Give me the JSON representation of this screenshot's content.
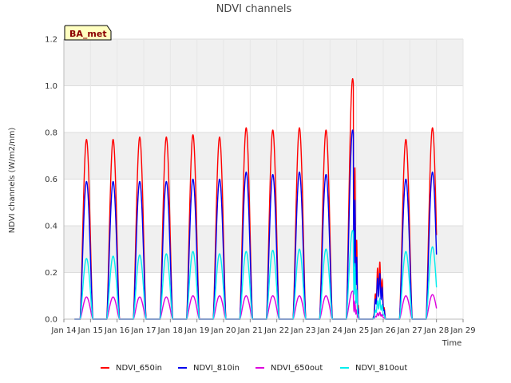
{
  "chart_data": {
    "type": "line",
    "title": "NDVI channels",
    "xlabel": "Time",
    "ylabel": "NDVI channels (W/m2/nm)",
    "badge": "BA_met",
    "ylim": [
      0.0,
      1.2
    ],
    "yticks": [
      0.0,
      0.2,
      0.4,
      0.6,
      0.8,
      1.0,
      1.2
    ],
    "ytick_labels": [
      "0.0",
      "0.2",
      "0.4",
      "0.6",
      "0.8",
      "1.0",
      "1.2"
    ],
    "xlim": [
      14,
      29
    ],
    "xticks": [
      14,
      15,
      16,
      17,
      18,
      19,
      20,
      21,
      22,
      23,
      24,
      25,
      26,
      27,
      28,
      29
    ],
    "xtick_labels": [
      "Jan 14",
      "Jan 15",
      "Jan 16",
      "Jan 17",
      "Jan 18",
      "Jan 19",
      "Jan 20",
      "Jan 21",
      "Jan 22",
      "Jan 23",
      "Jan 24",
      "Jan 25",
      "Jan 26",
      "Jan 27",
      "Jan 28",
      "Jan 29"
    ],
    "series_span": [
      14.4,
      28.0
    ],
    "day_peak_times": [
      14.85,
      15.85,
      16.85,
      17.85,
      18.85,
      19.85,
      20.85,
      21.85,
      22.85,
      23.85,
      24.85,
      25.85,
      26.85,
      27.85
    ],
    "series": [
      {
        "name": "NDVI_650in",
        "color": "#ff0000",
        "peaks": [
          0.77,
          0.77,
          0.78,
          0.78,
          0.79,
          0.78,
          0.82,
          0.81,
          0.82,
          0.81,
          1.03,
          0.25,
          0.77,
          0.82
        ]
      },
      {
        "name": "NDVI_810in",
        "color": "#0000ee",
        "peaks": [
          0.59,
          0.59,
          0.59,
          0.59,
          0.6,
          0.6,
          0.63,
          0.62,
          0.63,
          0.62,
          0.81,
          0.2,
          0.6,
          0.63
        ]
      },
      {
        "name": "NDVI_650out",
        "color": "#dd00dd",
        "peaks": [
          0.095,
          0.095,
          0.095,
          0.095,
          0.1,
          0.1,
          0.1,
          0.1,
          0.1,
          0.1,
          0.12,
          0.03,
          0.1,
          0.105
        ]
      },
      {
        "name": "NDVI_810out",
        "color": "#00eeee",
        "peaks": [
          0.26,
          0.27,
          0.275,
          0.28,
          0.29,
          0.28,
          0.29,
          0.295,
          0.3,
          0.3,
          0.38,
          0.09,
          0.29,
          0.31
        ]
      }
    ]
  }
}
